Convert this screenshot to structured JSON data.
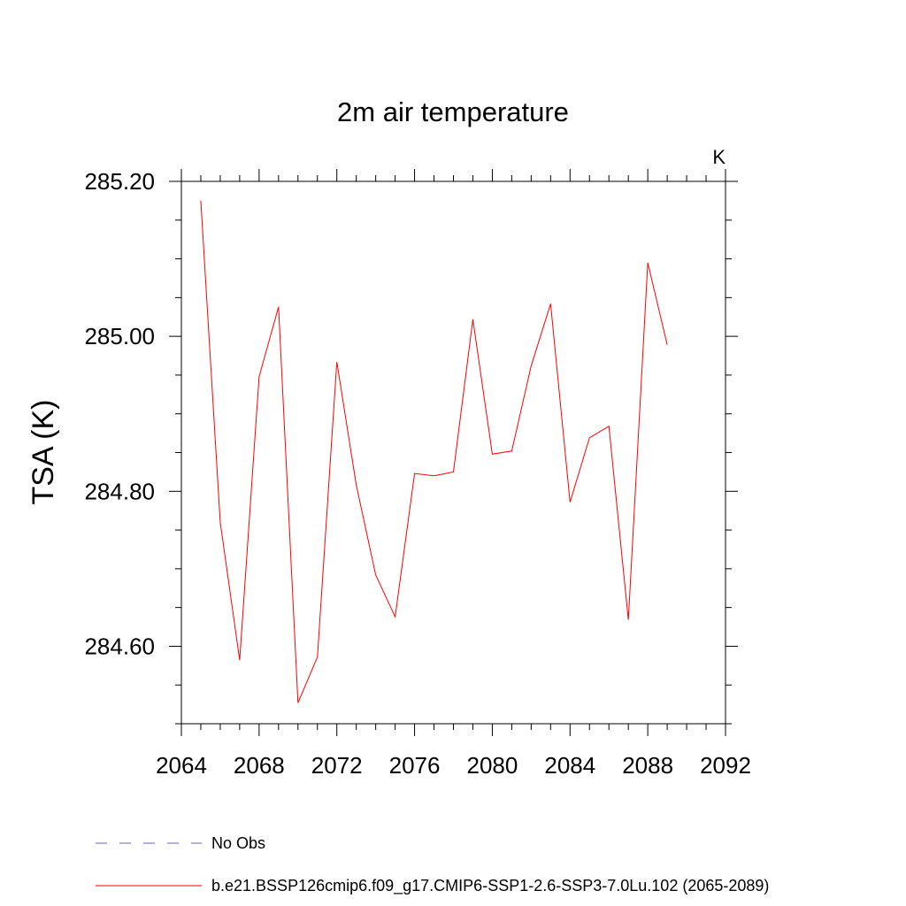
{
  "chart_data": {
    "type": "line",
    "title": "2m air temperature",
    "units": "K",
    "xlabel": "",
    "ylabel": "TSA  (K)",
    "xlim": [
      2064,
      2092
    ],
    "ylim": [
      284.5,
      285.2
    ],
    "x_ticks": [
      {
        "value": 2064,
        "label": "2064"
      },
      {
        "value": 2068,
        "label": "2068"
      },
      {
        "value": 2072,
        "label": "2072"
      },
      {
        "value": 2076,
        "label": "2076"
      },
      {
        "value": 2080,
        "label": "2080"
      },
      {
        "value": 2084,
        "label": "2084"
      },
      {
        "value": 2088,
        "label": "2088"
      },
      {
        "value": 2092,
        "label": "2092"
      }
    ],
    "y_ticks": [
      {
        "value": 284.6,
        "label": "284.60"
      },
      {
        "value": 284.8,
        "label": "284.80"
      },
      {
        "value": 285.0,
        "label": "285.00"
      },
      {
        "value": 285.2,
        "label": "285.20"
      }
    ],
    "grid": false,
    "legend_placement": "bottom",
    "series": [
      {
        "name": "No Obs",
        "color": "#6f5fa8",
        "dash": "dashed",
        "x": [],
        "y": []
      },
      {
        "name": "b.e21.BSSP126cmip6.f09_g17.CMIP6-SSP1-2.6-SSP3-7.0Lu.102 (2065-2089)",
        "color": "#ff0000",
        "dash": "solid",
        "x": [
          2065,
          2066,
          2067,
          2068,
          2069,
          2070,
          2071,
          2072,
          2073,
          2074,
          2075,
          2076,
          2077,
          2078,
          2079,
          2080,
          2081,
          2082,
          2083,
          2084,
          2085,
          2086,
          2087,
          2088,
          2089
        ],
        "y": [
          285.175,
          284.76,
          284.582,
          284.948,
          285.038,
          284.527,
          284.586,
          284.967,
          284.808,
          284.692,
          284.638,
          284.823,
          284.82,
          284.825,
          285.022,
          284.848,
          284.852,
          284.962,
          285.042,
          284.786,
          284.869,
          284.884,
          284.634,
          285.095,
          284.989
        ]
      }
    ]
  }
}
